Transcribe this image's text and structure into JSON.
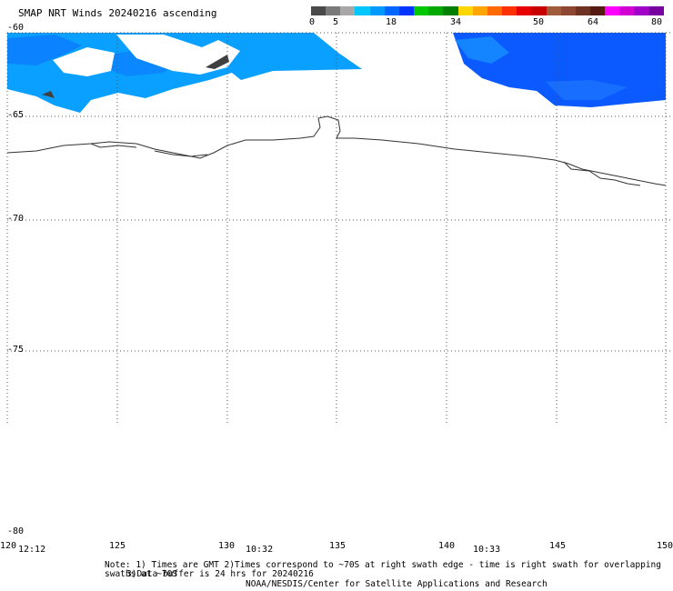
{
  "title": "SMAP NRT Winds 20240216 ascending",
  "colorbar": {
    "ticks": [
      "0",
      "5",
      "18",
      "34",
      "50",
      "64",
      "80"
    ],
    "colors": [
      "#4a4a4a",
      "#7a7a7a",
      "#a8a8a8",
      "#00c8ff",
      "#0099ff",
      "#0066ff",
      "#0033ff",
      "#00c800",
      "#00a800",
      "#008000",
      "#ffd700",
      "#ffa500",
      "#ff6a00",
      "#ff3000",
      "#e80000",
      "#c80000",
      "#a05a3c",
      "#8c4632",
      "#6e3222",
      "#551a10",
      "#ff00ff",
      "#d200d2",
      "#a000c8",
      "#7800a0"
    ]
  },
  "map": {
    "lat_labels": [
      "-60",
      "-65",
      "-70",
      "-75",
      "-80"
    ],
    "lon_labels": [
      "120",
      "125",
      "130",
      "135",
      "140",
      "145",
      "150"
    ],
    "time_labels": [
      "12:12",
      "10:32",
      "10:33"
    ],
    "wind_colors": {
      "low": "#0aa0ff",
      "mid": "#1890ff",
      "high": "#0040ff",
      "calm": "#404040"
    }
  },
  "notes": {
    "line1": "Note: 1) Times are GMT 2)Times correspond to ~70S at right swath edge - time is right swath for overlapping swaths at ~70S",
    "line2": "3)Data buffer is 24 hrs for 20240216",
    "line3": "NOAA/NESDIS/Center for Satellite Applications and Research"
  }
}
